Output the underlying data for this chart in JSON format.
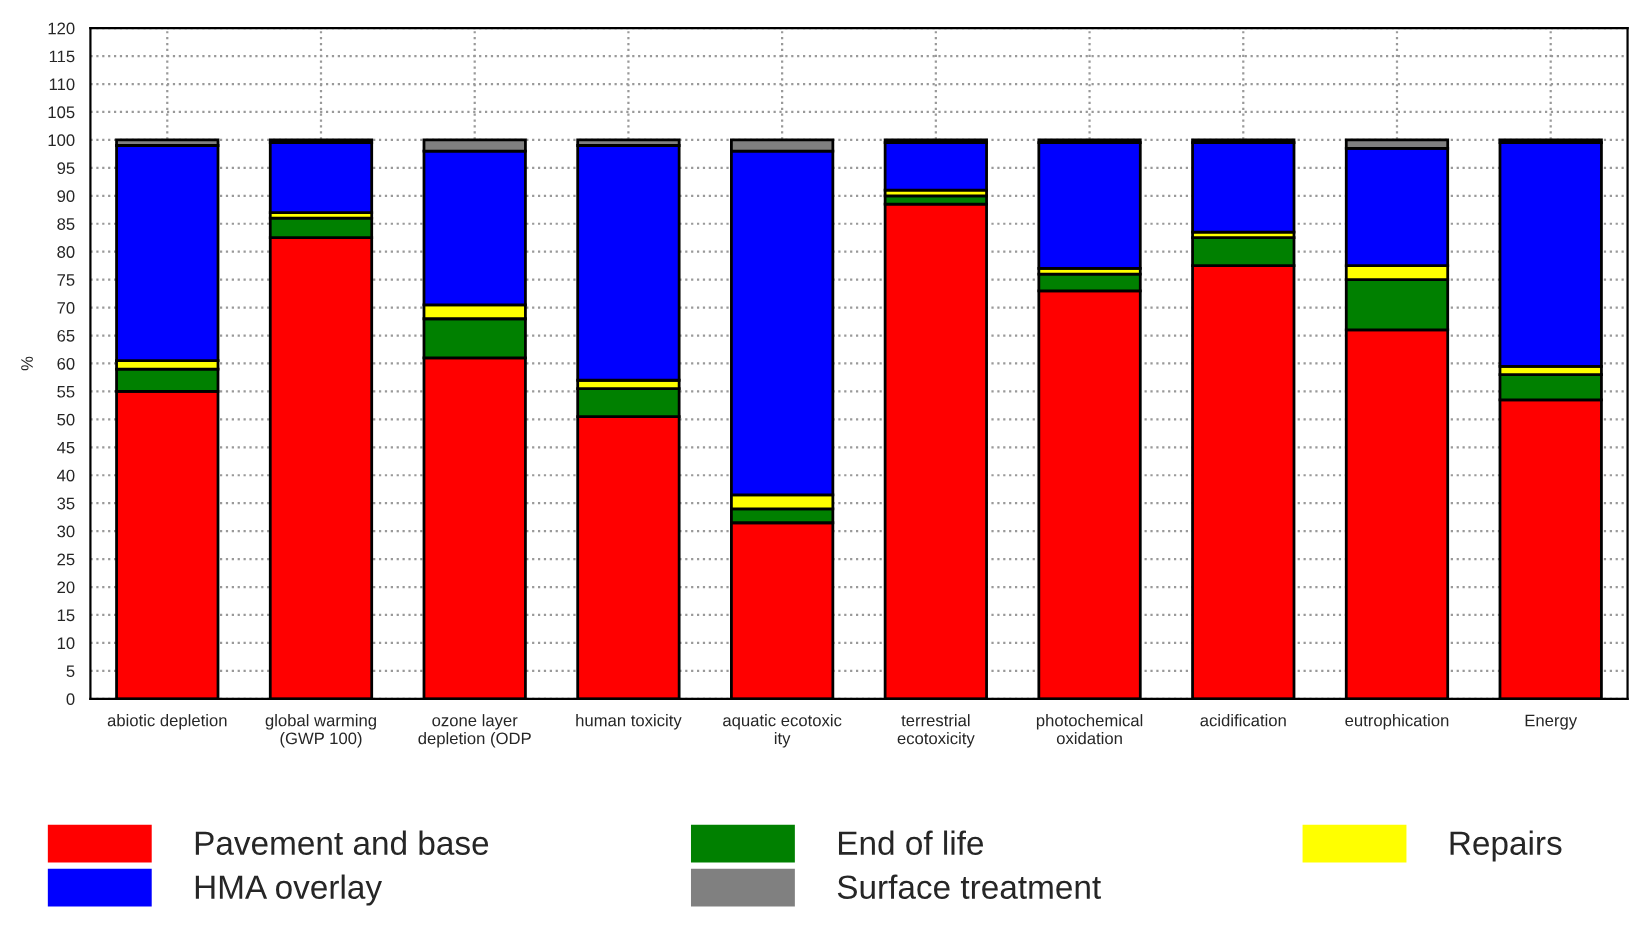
{
  "chart_data": {
    "type": "bar",
    "stacked": true,
    "ylabel": "%",
    "categories": [
      "abiotic depletion",
      "global warming\n(GWP 100)",
      "ozone layer\ndepletion (ODP",
      "human toxicity",
      "aquatic ecotoxic\nity",
      "terrestrial\necotoxicity",
      "photochemical\noxidation",
      "acidification",
      "eutrophication",
      "Energy"
    ],
    "series": [
      {
        "name": "Pavement and base",
        "color": "#ff0000",
        "values": [
          55,
          82.5,
          61,
          50.5,
          31.5,
          88.5,
          73,
          77.5,
          66,
          53.5
        ]
      },
      {
        "name": "End of life",
        "color": "#008000",
        "values": [
          4,
          3.5,
          7,
          5,
          2.5,
          1.5,
          3,
          5,
          9,
          4.5
        ]
      },
      {
        "name": "Repairs",
        "color": "#ffff00",
        "values": [
          1.5,
          1,
          2.5,
          1.5,
          2.5,
          1,
          1,
          1,
          2.5,
          1.5
        ]
      },
      {
        "name": "HMA overlay",
        "color": "#0000ff",
        "values": [
          38.5,
          12.5,
          27.5,
          42,
          61.5,
          8.5,
          22.5,
          16,
          21,
          40
        ]
      },
      {
        "name": "Surface treatment",
        "color": "#808080",
        "values": [
          1,
          0.5,
          2,
          1,
          2,
          0.5,
          0.5,
          0.5,
          1.5,
          0.5
        ]
      }
    ],
    "ylim": [
      0,
      120
    ],
    "yticks": [
      0,
      5,
      10,
      15,
      20,
      25,
      30,
      35,
      40,
      45,
      50,
      55,
      60,
      65,
      70,
      75,
      80,
      85,
      90,
      95,
      100,
      105,
      110,
      115,
      120
    ],
    "grid": true,
    "legend": "bottom"
  }
}
